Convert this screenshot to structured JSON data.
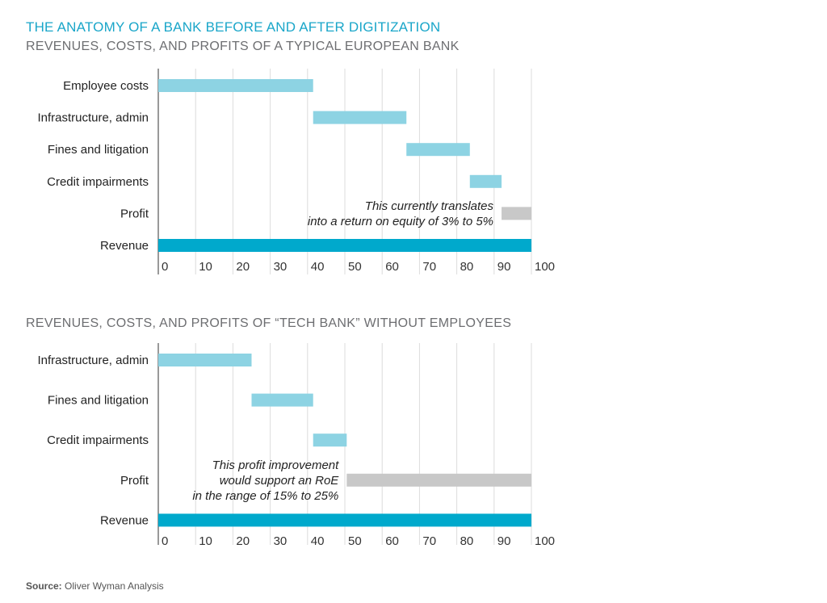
{
  "title": "THE ANATOMY OF A BANK BEFORE AND AFTER DIGITIZATION",
  "source": {
    "label": "Source:",
    "text": "Oliver Wyman Analysis"
  },
  "colors": {
    "cost": "#8dd3e3",
    "profit": "#c8c8c8",
    "revenue": "#00a9cc",
    "grid": "#dcdcdc",
    "axis": "#333333"
  },
  "chart_data": [
    {
      "type": "bar",
      "subtitle": "REVENUES, COSTS, AND PROFITS OF A TYPICAL EUROPEAN BANK",
      "xlim": [
        0,
        100
      ],
      "ticks": [
        0,
        10,
        20,
        30,
        40,
        50,
        60,
        70,
        80,
        90,
        100
      ],
      "grid": true,
      "rows": [
        {
          "label": "Employee costs",
          "start": 0,
          "end": 41.5,
          "kind": "cost"
        },
        {
          "label": "Infrastructure, admin",
          "start": 41.5,
          "end": 66.5,
          "kind": "cost"
        },
        {
          "label": "Fines and litigation",
          "start": 66.5,
          "end": 83.5,
          "kind": "cost"
        },
        {
          "label": "Credit impairments",
          "start": 83.5,
          "end": 92,
          "kind": "cost"
        },
        {
          "label": "Profit",
          "start": 92,
          "end": 100,
          "kind": "profit"
        },
        {
          "label": "Revenue",
          "start": 0,
          "end": 100,
          "kind": "revenue"
        }
      ],
      "annotation": {
        "row": "Profit",
        "lines": [
          "This currently translates",
          "into a return on equity of 3% to 5%"
        ]
      }
    },
    {
      "type": "bar",
      "subtitle": "REVENUES, COSTS, AND PROFITS OF “TECH BANK”  WITHOUT EMPLOYEES",
      "xlim": [
        0,
        100
      ],
      "ticks": [
        0,
        10,
        20,
        30,
        40,
        50,
        60,
        70,
        80,
        90,
        100
      ],
      "grid": true,
      "rows": [
        {
          "label": "Infrastructure, admin",
          "start": 0,
          "end": 25,
          "kind": "cost"
        },
        {
          "label": "Fines and litigation",
          "start": 25,
          "end": 41.5,
          "kind": "cost"
        },
        {
          "label": "Credit impairments",
          "start": 41.5,
          "end": 50.5,
          "kind": "cost"
        },
        {
          "label": "Profit",
          "start": 50.5,
          "end": 100,
          "kind": "profit"
        },
        {
          "label": "Revenue",
          "start": 0,
          "end": 100,
          "kind": "revenue"
        }
      ],
      "annotation": {
        "row": "Profit",
        "lines": [
          "This profit improvement",
          "would support an RoE",
          "in the range of 15% to 25%"
        ]
      }
    }
  ]
}
